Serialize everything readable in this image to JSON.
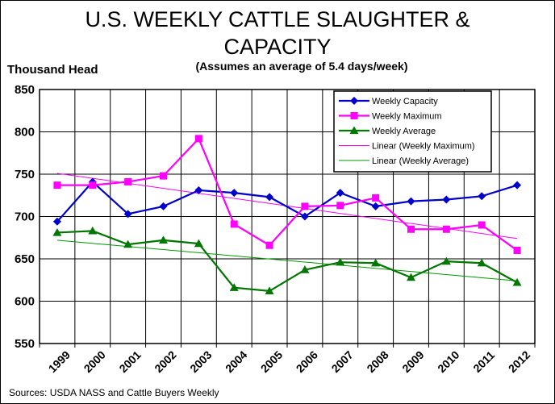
{
  "chart_data": {
    "type": "line",
    "title_line1": "U.S. WEEKLY CATTLE SLAUGHTER &",
    "title_line2": "CAPACITY",
    "subtitle": "(Assumes an average of 5.4 days/week)",
    "ylabel": "Thousand Head",
    "source": "Sources:  USDA NASS and Cattle Buyers Weekly",
    "ylim": [
      550,
      850
    ],
    "y_ticks": [
      "550",
      "600",
      "650",
      "700",
      "750",
      "800",
      "850"
    ],
    "x": [
      "1999",
      "2000",
      "2001",
      "2002",
      "2003",
      "2004",
      "2005",
      "2006",
      "2007",
      "2008",
      "2009",
      "2010",
      "2011",
      "2012"
    ],
    "grid": true,
    "legend_position": "top-right",
    "series": [
      {
        "name": "Weekly Capacity",
        "color": "#0000cc",
        "marker": "diamond",
        "values": [
          694,
          741,
          703,
          712,
          731,
          728,
          723,
          700,
          728,
          712,
          718,
          720,
          724,
          737
        ]
      },
      {
        "name": "Weekly Maximum",
        "color": "#ff00ff",
        "marker": "square",
        "values": [
          737,
          737,
          741,
          748,
          792,
          691,
          666,
          712,
          713,
          722,
          685,
          685,
          690,
          660
        ]
      },
      {
        "name": "Weekly Average",
        "color": "#007700",
        "marker": "triangle",
        "values": [
          681,
          683,
          667,
          672,
          668,
          616,
          612,
          637,
          646,
          645,
          628,
          647,
          645,
          622
        ]
      }
    ],
    "trendlines": [
      {
        "name": "Linear (Weekly Maximum)",
        "color": "#ff00ff",
        "values": [
          751,
          674
        ]
      },
      {
        "name": "Linear (Weekly Average)",
        "color": "#009900",
        "values": [
          672,
          624
        ]
      }
    ]
  }
}
